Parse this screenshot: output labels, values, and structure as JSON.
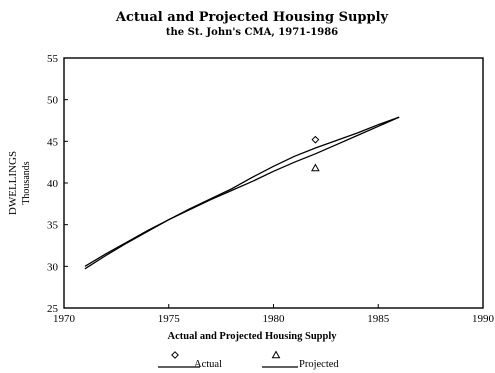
{
  "chart_data": {
    "type": "line",
    "title": "Actual and Projected Housing Supply",
    "subtitle": "the St. John's CMA, 1971-1986",
    "xlabel": "Actual and Projected Housing Supply",
    "ylabel": "DWELLINGS",
    "ylabel_sub": "Thousands",
    "xlim": [
      1970,
      1990
    ],
    "ylim": [
      25,
      55
    ],
    "x_ticks": [
      1970,
      1975,
      1980,
      1985,
      1990
    ],
    "y_ticks": [
      25,
      30,
      35,
      40,
      45,
      50,
      55
    ],
    "grid": false,
    "legend_position": "bottom",
    "series": [
      {
        "name": "Actual",
        "marker": "diamond",
        "x": [
          1971,
          1972,
          1973,
          1974,
          1975,
          1976,
          1977,
          1978,
          1979,
          1980,
          1981,
          1982,
          1983,
          1984,
          1985,
          1986
        ],
        "y": [
          30.0,
          31.5,
          32.9,
          34.3,
          35.6,
          36.9,
          38.1,
          39.3,
          40.7,
          42.0,
          43.2,
          44.2,
          45.1,
          46.0,
          47.0,
          47.9
        ],
        "marker_point": {
          "x": 1982,
          "y": 45.2
        }
      },
      {
        "name": "Projected",
        "marker": "triangle",
        "x": [
          1971,
          1972,
          1973,
          1974,
          1975,
          1976,
          1977,
          1978,
          1979,
          1980,
          1981,
          1982,
          1983,
          1984,
          1985,
          1986
        ],
        "y": [
          29.7,
          31.3,
          32.8,
          34.2,
          35.6,
          36.8,
          38.0,
          39.1,
          40.2,
          41.4,
          42.5,
          43.5,
          44.6,
          45.7,
          46.8,
          47.9
        ],
        "marker_point": {
          "x": 1982,
          "y": 41.8
        }
      }
    ]
  },
  "colors": {
    "line": "#000000",
    "background": "#ffffff"
  }
}
